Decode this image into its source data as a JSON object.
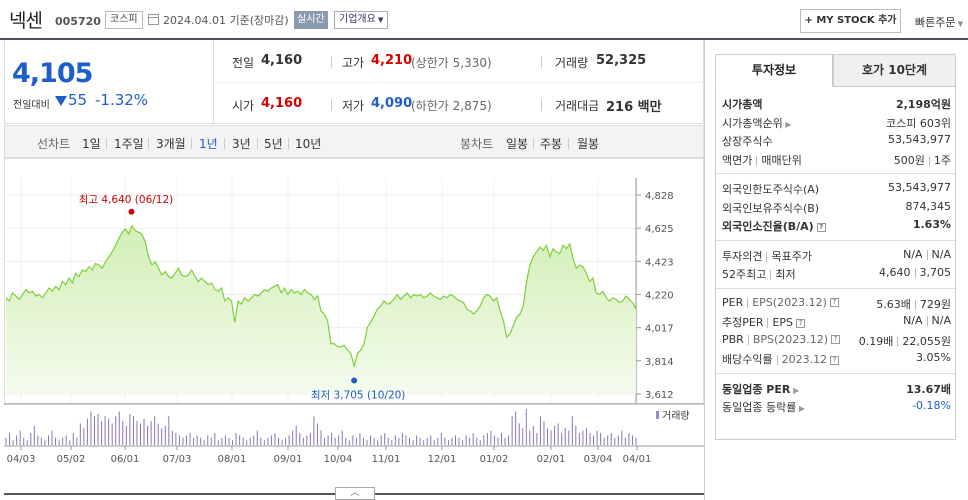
{
  "header": {
    "name": "넥센",
    "code": "005720",
    "market": "코스피",
    "date": "2024.04.01",
    "basis": "기준(장마감)",
    "realtime": "실시간",
    "company_info": "기업개요",
    "my_stock_btn": "+ MY STOCK 추가",
    "quick_order": "빠른주문"
  },
  "price": {
    "current": "4,105",
    "change_label": "전일대비",
    "change": "55",
    "change_pct": "-1.32%",
    "prev_label": "전일",
    "prev": "4,160",
    "open_label": "시가",
    "open": "4,160",
    "high_label": "고가",
    "high": "4,210",
    "upper_limit": "(상한가 5,330)",
    "low_label": "저가",
    "low": "4,090",
    "lower_limit": "(하한가 2,875)",
    "volume_label": "거래량",
    "volume": "52,325",
    "amount_label": "거래대금",
    "amount": "216 백만"
  },
  "tabs": {
    "line_label": "선차트",
    "line": [
      "1일",
      "1주일",
      "3개월",
      "1년",
      "3년",
      "5년",
      "10년"
    ],
    "selected_line": "1년",
    "candle_label": "봉차트",
    "candle": [
      "일봉",
      "주봉",
      "월봉"
    ]
  },
  "chart_data": {
    "type": "area",
    "y_ticks": [
      "4,828",
      "4,625",
      "4,423",
      "4,220",
      "4,017",
      "3,814",
      "3,612"
    ],
    "ylim": [
      3612,
      4828
    ],
    "x_ticks": [
      "04/03",
      "05/02",
      "06/01",
      "07/03",
      "08/01",
      "09/01",
      "10/04",
      "11/01",
      "12/01",
      "01/02",
      "02/01",
      "03/04",
      "04/01"
    ],
    "high_annotation": "최고 4,640 (06/12)",
    "low_annotation": "최저 3,705 (10/20)",
    "volume_label": "거래량",
    "series": [
      {
        "values": [
          4200,
          4180,
          4230,
          4210,
          4190,
          4220,
          4250,
          4230,
          4240,
          4210,
          4220,
          4200,
          4230,
          4260,
          4240,
          4270,
          4250,
          4300,
          4280,
          4320,
          4290,
          4350,
          4330,
          4370,
          4360,
          4390,
          4370,
          4410,
          4400,
          4380,
          4420,
          4450,
          4480,
          4520,
          4560,
          4600,
          4620,
          4590,
          4640,
          4610,
          4600,
          4590,
          4540,
          4450,
          4400,
          4420,
          4380,
          4340,
          4360,
          4330,
          4320,
          4350,
          4380,
          4340,
          4330,
          4340,
          4370,
          4330,
          4300,
          4320,
          4300,
          4280,
          4290,
          4250,
          4240,
          4260,
          4180,
          4200,
          4180,
          4050,
          4180,
          4160,
          4200,
          4180,
          4200,
          4220,
          4210,
          4230,
          4250,
          4240,
          4260,
          4270,
          4280,
          4230,
          4260,
          4220,
          4250,
          4230,
          4240,
          4220,
          4250,
          4230,
          4220,
          4190,
          4210,
          4120,
          4100,
          4060,
          3920,
          3920,
          3900,
          3900,
          3910,
          3880,
          3860,
          3780,
          3860,
          3880,
          3920,
          4020,
          4050,
          4090,
          4130,
          4150,
          4180,
          4160,
          4170,
          4190,
          4220,
          4190,
          4210,
          4230,
          4200,
          4220,
          4210,
          4220,
          4200,
          4210,
          4230,
          4210,
          4200,
          4190,
          4210,
          4200,
          4220,
          4210,
          4190,
          4180,
          4170,
          4130,
          4120,
          4100,
          4120,
          4150,
          4200,
          4220,
          4210,
          4180,
          4200,
          4120,
          4060,
          3960,
          3980,
          4030,
          4080,
          4100,
          4150,
          4300,
          4400,
          4450,
          4480,
          4510,
          4490,
          4520,
          4450,
          4500,
          4480,
          4470,
          4520,
          4500,
          4530,
          4440,
          4380,
          4400,
          4390,
          4350,
          4300,
          4320,
          4230,
          4220,
          4240,
          4200,
          4180,
          4200,
          4190,
          4170,
          4180,
          4210,
          4190,
          4170,
          4130
        ]
      }
    ]
  },
  "invest_info": {
    "tab_active": "투자정보",
    "tab_inactive": "호가 10단계",
    "rows1": [
      {
        "k": "시가총액",
        "v": "2,198억원",
        "bold": true
      },
      {
        "k": "시가총액순위",
        "v": "코스피 603위"
      },
      {
        "k": "상장주식수",
        "v": "53,543,977"
      },
      {
        "k": "액면가",
        "k2": "매매단위",
        "v": "500원",
        "v2": "1주"
      }
    ],
    "rows2": [
      {
        "k": "외국인한도주식수(A)",
        "v": "53,543,977"
      },
      {
        "k": "외국인보유주식수(B)",
        "v": "874,345"
      },
      {
        "k": "외국인소진율(B/A)",
        "v": "1.63%",
        "bold": true
      }
    ],
    "rows3": [
      {
        "k": "투자의견",
        "k2": "목표주가",
        "v": "N/A",
        "v2": "N/A"
      },
      {
        "k": "52주최고",
        "k2": "최저",
        "v": "4,640",
        "v2": "3,705"
      }
    ],
    "rows4": [
      {
        "k": "PER",
        "k2": "EPS(2023.12)",
        "v": "5.63배",
        "v2": "729원"
      },
      {
        "k": "추정PER",
        "k2": "EPS",
        "v": "N/A",
        "v2": "N/A"
      },
      {
        "k": "PBR",
        "k2": "BPS(2023.12)",
        "v": "0.19배",
        "v2": "22,055원"
      },
      {
        "k": "배당수익률",
        "k2": "2023.12",
        "v": "3.05%"
      }
    ],
    "rows5": [
      {
        "k": "동일업종 PER",
        "v": "13.67배",
        "bold": true
      },
      {
        "k": "동일업종 등락률",
        "v": "-0.18%"
      }
    ]
  },
  "colors": {
    "up": "#d60000",
    "down": "#1e5ec8",
    "line": "#7dcf3c",
    "fill": "#e4f6d2"
  }
}
